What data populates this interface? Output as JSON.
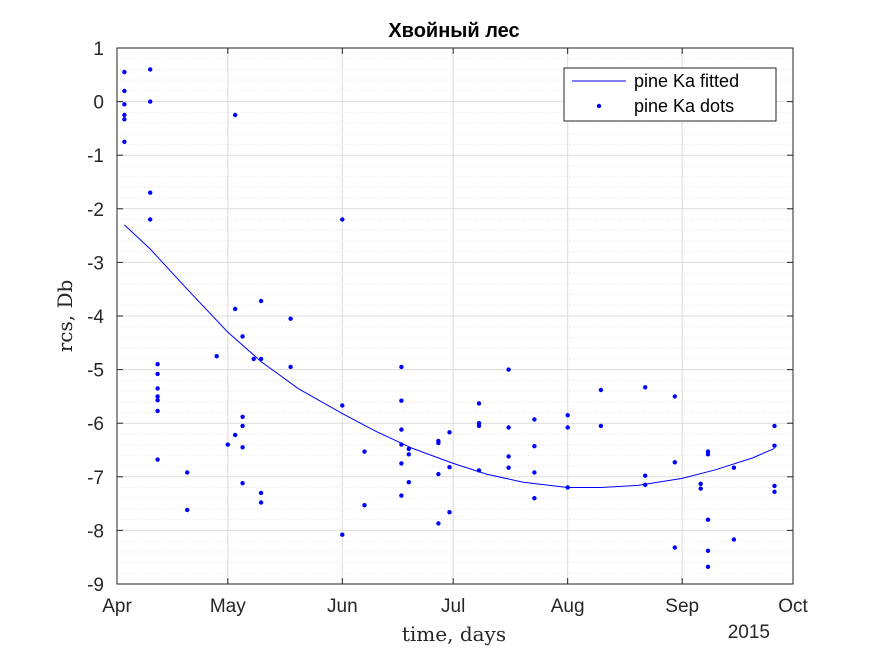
{
  "chart_data": {
    "type": "scatter",
    "title": "Хвойный лес",
    "xlabel": "time, days",
    "ylabel": "rcs, Db",
    "x_secondary_label": "2015",
    "xlim": [
      "2015-04-01",
      "2015-10-01"
    ],
    "ylim": [
      -9,
      1
    ],
    "x_ticks": [
      {
        "date": "2015-04-01",
        "label": "Apr"
      },
      {
        "date": "2015-05-01",
        "label": "May"
      },
      {
        "date": "2015-06-01",
        "label": "Jun"
      },
      {
        "date": "2015-07-01",
        "label": "Jul"
      },
      {
        "date": "2015-08-01",
        "label": "Aug"
      },
      {
        "date": "2015-09-01",
        "label": "Sep"
      },
      {
        "date": "2015-10-01",
        "label": "Oct"
      }
    ],
    "y_ticks": [
      1,
      0,
      -1,
      -2,
      -3,
      -4,
      -5,
      -6,
      -7,
      -8,
      -9
    ],
    "grid": true,
    "minor_grid_y": true,
    "legend_position": "top-right",
    "colors": {
      "series": "#0000ff",
      "grid": "#dcdcdc",
      "axis": "#262626"
    },
    "series": [
      {
        "name": "pine Ka fitted",
        "kind": "line",
        "x": [
          "2015-04-03",
          "2015-04-10",
          "2015-04-20",
          "2015-05-01",
          "2015-05-10",
          "2015-05-20",
          "2015-06-01",
          "2015-06-10",
          "2015-06-20",
          "2015-07-01",
          "2015-07-10",
          "2015-07-20",
          "2015-08-01",
          "2015-08-10",
          "2015-08-20",
          "2015-09-01",
          "2015-09-10",
          "2015-09-20",
          "2015-09-26"
        ],
        "y": [
          -2.3,
          -2.75,
          -3.5,
          -4.3,
          -4.85,
          -5.35,
          -5.82,
          -6.15,
          -6.47,
          -6.75,
          -6.95,
          -7.1,
          -7.2,
          -7.2,
          -7.16,
          -7.03,
          -6.87,
          -6.65,
          -6.47
        ]
      },
      {
        "name": "pine Ka dots",
        "kind": "scatter",
        "points": [
          [
            "2015-04-03",
            0.55
          ],
          [
            "2015-04-03",
            0.2
          ],
          [
            "2015-04-03",
            -0.05
          ],
          [
            "2015-04-03",
            -0.25
          ],
          [
            "2015-04-03",
            -0.33
          ],
          [
            "2015-04-03",
            -0.75
          ],
          [
            "2015-04-10",
            0.6
          ],
          [
            "2015-04-10",
            0.0
          ],
          [
            "2015-04-10",
            -1.7
          ],
          [
            "2015-04-10",
            -2.2
          ],
          [
            "2015-04-12",
            -4.9
          ],
          [
            "2015-04-12",
            -5.08
          ],
          [
            "2015-04-12",
            -5.35
          ],
          [
            "2015-04-12",
            -5.5
          ],
          [
            "2015-04-12",
            -5.57
          ],
          [
            "2015-04-12",
            -5.77
          ],
          [
            "2015-04-12",
            -6.68
          ],
          [
            "2015-04-20",
            -6.92
          ],
          [
            "2015-04-20",
            -7.62
          ],
          [
            "2015-04-28",
            -4.75
          ],
          [
            "2015-05-01",
            -6.4
          ],
          [
            "2015-05-03",
            -0.25
          ],
          [
            "2015-05-03",
            -3.87
          ],
          [
            "2015-05-03",
            -6.22
          ],
          [
            "2015-05-05",
            -4.38
          ],
          [
            "2015-05-05",
            -5.88
          ],
          [
            "2015-05-05",
            -6.05
          ],
          [
            "2015-05-05",
            -6.45
          ],
          [
            "2015-05-05",
            -7.12
          ],
          [
            "2015-05-08",
            -4.8
          ],
          [
            "2015-05-10",
            -3.72
          ],
          [
            "2015-05-10",
            -4.8
          ],
          [
            "2015-05-10",
            -7.3
          ],
          [
            "2015-05-10",
            -7.48
          ],
          [
            "2015-05-18",
            -4.05
          ],
          [
            "2015-05-18",
            -4.95
          ],
          [
            "2015-06-01",
            -2.2
          ],
          [
            "2015-06-01",
            -5.67
          ],
          [
            "2015-06-01",
            -8.08
          ],
          [
            "2015-06-07",
            -6.53
          ],
          [
            "2015-06-07",
            -7.53
          ],
          [
            "2015-06-17",
            -4.95
          ],
          [
            "2015-06-17",
            -5.58
          ],
          [
            "2015-06-17",
            -6.12
          ],
          [
            "2015-06-17",
            -6.4
          ],
          [
            "2015-06-17",
            -6.75
          ],
          [
            "2015-06-17",
            -7.35
          ],
          [
            "2015-06-19",
            -6.48
          ],
          [
            "2015-06-19",
            -6.58
          ],
          [
            "2015-06-19",
            -7.1
          ],
          [
            "2015-06-27",
            -6.33
          ],
          [
            "2015-06-27",
            -6.37
          ],
          [
            "2015-06-27",
            -6.95
          ],
          [
            "2015-06-27",
            -7.87
          ],
          [
            "2015-06-30",
            -6.17
          ],
          [
            "2015-06-30",
            -6.82
          ],
          [
            "2015-06-30",
            -7.66
          ],
          [
            "2015-07-08",
            -5.63
          ],
          [
            "2015-07-08",
            -6.0
          ],
          [
            "2015-07-08",
            -6.05
          ],
          [
            "2015-07-08",
            -6.88
          ],
          [
            "2015-07-16",
            -5.0
          ],
          [
            "2015-07-16",
            -6.08
          ],
          [
            "2015-07-16",
            -6.62
          ],
          [
            "2015-07-16",
            -6.83
          ],
          [
            "2015-07-23",
            -5.93
          ],
          [
            "2015-07-23",
            -6.43
          ],
          [
            "2015-07-23",
            -6.92
          ],
          [
            "2015-07-23",
            -7.4
          ],
          [
            "2015-08-01",
            -5.85
          ],
          [
            "2015-08-01",
            -6.08
          ],
          [
            "2015-08-01",
            -7.2
          ],
          [
            "2015-08-10",
            -5.38
          ],
          [
            "2015-08-10",
            -6.05
          ],
          [
            "2015-08-22",
            -5.33
          ],
          [
            "2015-08-22",
            -6.98
          ],
          [
            "2015-08-22",
            -7.15
          ],
          [
            "2015-08-30",
            -5.5
          ],
          [
            "2015-08-30",
            -6.73
          ],
          [
            "2015-08-30",
            -8.32
          ],
          [
            "2015-09-06",
            -7.13
          ],
          [
            "2015-09-06",
            -7.22
          ],
          [
            "2015-09-08",
            -6.53
          ],
          [
            "2015-09-08",
            -6.58
          ],
          [
            "2015-09-08",
            -7.8
          ],
          [
            "2015-09-08",
            -8.38
          ],
          [
            "2015-09-08",
            -8.68
          ],
          [
            "2015-09-15",
            -6.83
          ],
          [
            "2015-09-15",
            -8.17
          ],
          [
            "2015-09-26",
            -6.05
          ],
          [
            "2015-09-26",
            -6.42
          ],
          [
            "2015-09-26",
            -7.17
          ],
          [
            "2015-09-26",
            -7.28
          ]
        ]
      }
    ]
  }
}
